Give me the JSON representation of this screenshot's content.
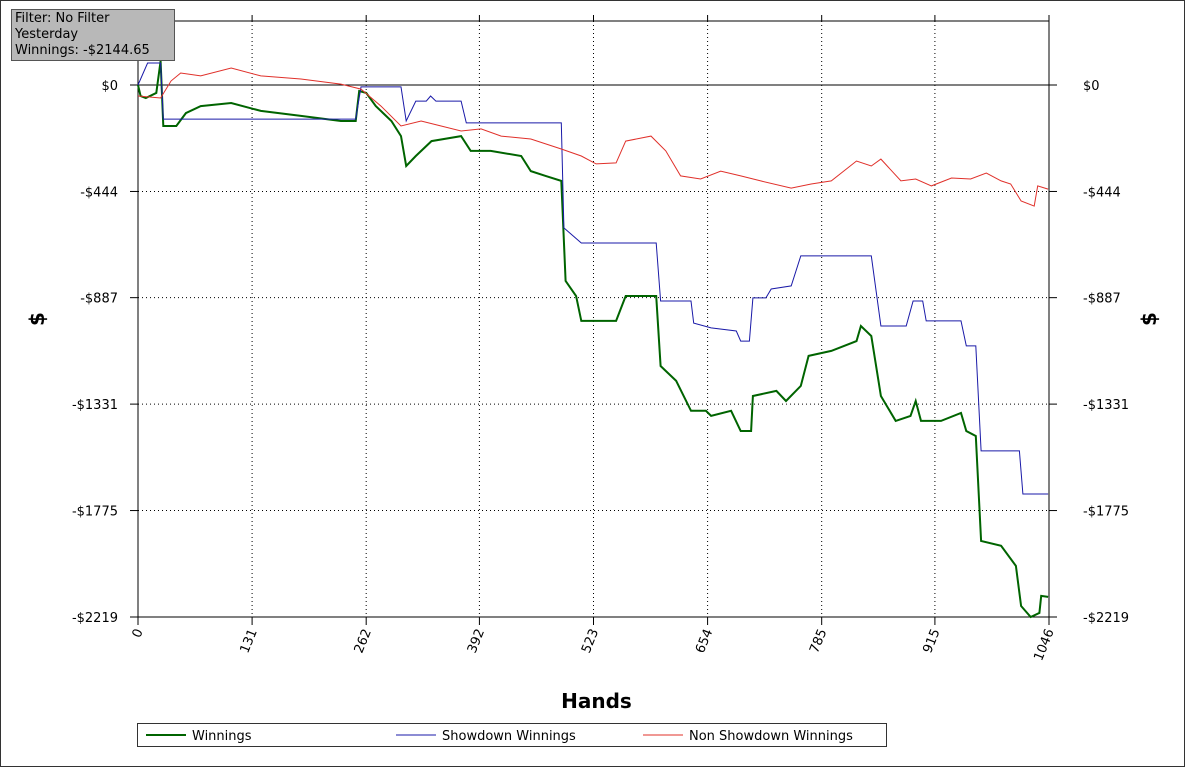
{
  "chart_data": {
    "type": "line",
    "annotations": [
      "Filter: No Filter",
      "Yesterday",
      "Winnings: -$2144.65"
    ],
    "xlabel": "Hands",
    "ylabel": "$",
    "y2label": "$",
    "xlim": [
      0,
      1046
    ],
    "xticks": [
      0,
      131,
      262,
      392,
      523,
      654,
      785,
      915,
      1046
    ],
    "ylim": [
      -2219,
      267
    ],
    "yticks": [
      {
        "value": 0,
        "label": "$0"
      },
      {
        "value": -444,
        "label": "-$444"
      },
      {
        "value": -887,
        "label": "-$887"
      },
      {
        "value": -1331,
        "label": "-$1331"
      },
      {
        "value": -1775,
        "label": "-$1775"
      },
      {
        "value": -2219,
        "label": "-$2219"
      }
    ],
    "y2lim": [
      -2219,
      267
    ],
    "y2ticks": [
      {
        "value": 0,
        "label": "$0"
      },
      {
        "value": -444,
        "label": "-$444"
      },
      {
        "value": -887,
        "label": "-$887"
      },
      {
        "value": -1331,
        "label": "-$1331"
      },
      {
        "value": -1775,
        "label": "-$1775"
      },
      {
        "value": -2219,
        "label": "-$2219"
      }
    ],
    "grid": true,
    "series": [
      {
        "name": "Winnings",
        "color": "#006400",
        "x": [
          0,
          3,
          9,
          21,
          26,
          29,
          44,
          55,
          72,
          107,
          141,
          187,
          233,
          250,
          254,
          262,
          273,
          291,
          302,
          308,
          319,
          337,
          371,
          382,
          405,
          440,
          451,
          468,
          486,
          491,
          503,
          509,
          549,
          560,
          595,
          600,
          618,
          635,
          652,
          658,
          681,
          692,
          704,
          706,
          733,
          744,
          761,
          770,
          796,
          825,
          830,
          842,
          853,
          870,
          887,
          893,
          899,
          922,
          945,
          951,
          962,
          968,
          991,
          1008,
          1014,
          1025,
          1035,
          1037,
          1045
        ],
        "values": [
          0,
          -46,
          -54,
          -33,
          100,
          -171,
          -171,
          -117,
          -88,
          -75,
          -108,
          -129,
          -150,
          -150,
          -25,
          -33,
          -88,
          -150,
          -213,
          -338,
          -296,
          -234,
          -213,
          -275,
          -275,
          -296,
          -359,
          -379,
          -400,
          -817,
          -880,
          -984,
          -984,
          -880,
          -880,
          -1172,
          -1234,
          -1359,
          -1359,
          -1380,
          -1359,
          -1443,
          -1443,
          -1297,
          -1276,
          -1318,
          -1255,
          -1130,
          -1109,
          -1068,
          -1005,
          -1047,
          -1297,
          -1401,
          -1380,
          -1318,
          -1401,
          -1401,
          -1368,
          -1443,
          -1464,
          -1902,
          -1922,
          -2006,
          -2173,
          -2219,
          -2202,
          -2131,
          -2135
        ]
      },
      {
        "name": "Showdown Winnings",
        "color": "#1a1aa8",
        "x": [
          0,
          11,
          26,
          29,
          250,
          256,
          302,
          308,
          319,
          331,
          336,
          342,
          371,
          377,
          446,
          486,
          489,
          509,
          595,
          600,
          635,
          638,
          658,
          687,
          692,
          702,
          706,
          721,
          727,
          750,
          761,
          842,
          853,
          882,
          890,
          901,
          905,
          945,
          951,
          962,
          968,
          1012,
          1016,
          1045
        ],
        "values": [
          0,
          92,
          92,
          -142,
          -142,
          -8,
          -8,
          -150,
          -67,
          -67,
          -46,
          -67,
          -67,
          -158,
          -158,
          -158,
          -596,
          -659,
          -659,
          -901,
          -901,
          -993,
          -1013,
          -1026,
          -1068,
          -1068,
          -888,
          -888,
          -851,
          -838,
          -713,
          -713,
          -1005,
          -1005,
          -901,
          -901,
          -984,
          -984,
          -1088,
          -1088,
          -1526,
          -1526,
          -1706,
          -1706
        ]
      },
      {
        "name": "Non Showdown Winnings",
        "color": "#e0302a",
        "x": [
          0,
          26,
          38,
          49,
          72,
          107,
          141,
          187,
          233,
          256,
          279,
          302,
          325,
          348,
          371,
          394,
          417,
          451,
          486,
          509,
          526,
          549,
          560,
          589,
          606,
          623,
          646,
          669,
          692,
          715,
          750,
          773,
          796,
          825,
          842,
          853,
          876,
          893,
          911,
          934,
          956,
          974,
          991,
          1002,
          1014,
          1029,
          1033,
          1045
        ],
        "values": [
          -46,
          -54,
          17,
          50,
          38,
          71,
          38,
          25,
          4,
          -17,
          -88,
          -171,
          -150,
          -171,
          -192,
          -183,
          -213,
          -225,
          -267,
          -296,
          -329,
          -325,
          -234,
          -213,
          -275,
          -379,
          -392,
          -359,
          -379,
          -400,
          -430,
          -413,
          -400,
          -317,
          -338,
          -309,
          -400,
          -392,
          -421,
          -388,
          -392,
          -367,
          -400,
          -413,
          -484,
          -505,
          -421,
          -434
        ]
      }
    ]
  }
}
